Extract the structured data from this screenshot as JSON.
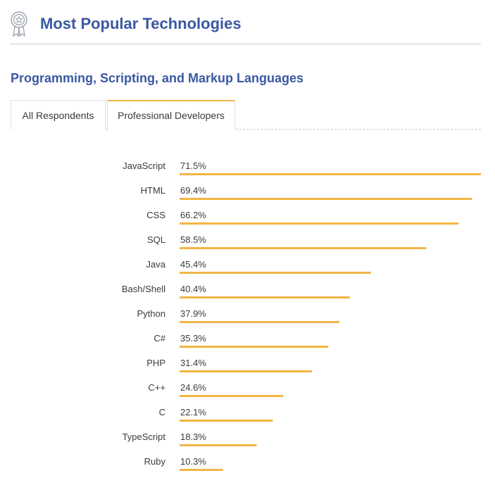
{
  "header": {
    "title": "Most Popular Technologies",
    "icon": "award-badge-icon"
  },
  "section": {
    "title": "Programming, Scripting, and Markup Languages"
  },
  "tabs": [
    {
      "label": "All Respondents",
      "active": false
    },
    {
      "label": "Professional Developers",
      "active": true
    }
  ],
  "colors": {
    "accent": "#3b58a3",
    "bar": "#f2b544"
  },
  "chart_data": {
    "type": "bar",
    "orientation": "horizontal",
    "categories": [
      "JavaScript",
      "HTML",
      "CSS",
      "SQL",
      "Java",
      "Bash/Shell",
      "Python",
      "C#",
      "PHP",
      "C++",
      "C",
      "TypeScript",
      "Ruby"
    ],
    "values": [
      71.5,
      69.4,
      66.2,
      58.5,
      45.4,
      40.4,
      37.9,
      35.3,
      31.4,
      24.6,
      22.1,
      18.3,
      10.3
    ],
    "value_labels": [
      "71.5%",
      "69.4%",
      "66.2%",
      "58.5%",
      "45.4%",
      "40.4%",
      "37.9%",
      "35.3%",
      "31.4%",
      "24.6%",
      "22.1%",
      "18.3%",
      "10.3%"
    ],
    "xlim": [
      0,
      71.5
    ],
    "grid": false
  }
}
